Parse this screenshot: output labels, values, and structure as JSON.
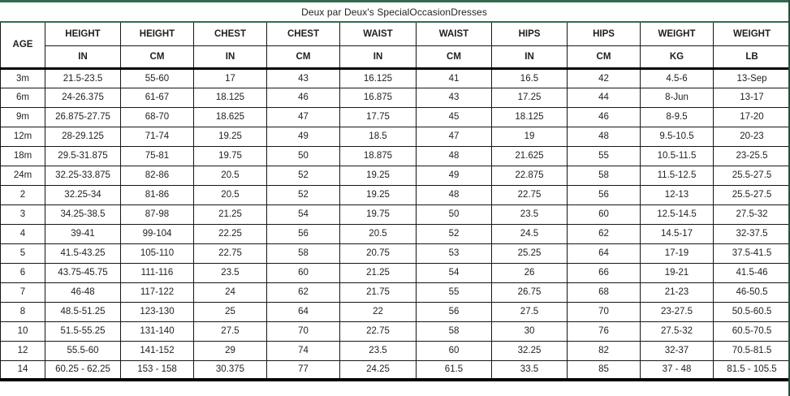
{
  "colors": {
    "accent_green": "#35694e",
    "frame_green_dark": "#26503c",
    "border_black": "#000000",
    "text": "#1f1f1f",
    "background": "#ffffff"
  },
  "chart_data": {
    "type": "table",
    "title": "Deux par Deux's SpecialOccasionDresses",
    "age_header": "AGE",
    "columns": [
      {
        "label": "HEIGHT",
        "unit": "IN"
      },
      {
        "label": "HEIGHT",
        "unit": "CM"
      },
      {
        "label": "CHEST",
        "unit": "IN"
      },
      {
        "label": "CHEST",
        "unit": "CM"
      },
      {
        "label": "WAIST",
        "unit": "IN"
      },
      {
        "label": "WAIST",
        "unit": "CM"
      },
      {
        "label": "HIPS",
        "unit": "IN"
      },
      {
        "label": "HIPS",
        "unit": "CM"
      },
      {
        "label": "WEIGHT",
        "unit": "KG"
      },
      {
        "label": "WEIGHT",
        "unit": "LB"
      }
    ],
    "rows": [
      {
        "age": "3m",
        "values": [
          "21.5-23.5",
          "55-60",
          "17",
          "43",
          "16.125",
          "41",
          "16.5",
          "42",
          "4.5-6",
          "13-Sep"
        ]
      },
      {
        "age": "6m",
        "values": [
          "24-26.375",
          "61-67",
          "18.125",
          "46",
          "16.875",
          "43",
          "17.25",
          "44",
          "8-Jun",
          "13-17"
        ]
      },
      {
        "age": "9m",
        "values": [
          "26.875-27.75",
          "68-70",
          "18.625",
          "47",
          "17.75",
          "45",
          "18.125",
          "46",
          "8-9.5",
          "17-20"
        ]
      },
      {
        "age": "12m",
        "values": [
          "28-29.125",
          "71-74",
          "19.25",
          "49",
          "18.5",
          "47",
          "19",
          "48",
          "9.5-10.5",
          "20-23"
        ]
      },
      {
        "age": "18m",
        "values": [
          "29.5-31.875",
          "75-81",
          "19.75",
          "50",
          "18.875",
          "48",
          "21.625",
          "55",
          "10.5-11.5",
          "23-25.5"
        ]
      },
      {
        "age": "24m",
        "values": [
          "32.25-33.875",
          "82-86",
          "20.5",
          "52",
          "19.25",
          "49",
          "22.875",
          "58",
          "11.5-12.5",
          "25.5-27.5"
        ]
      },
      {
        "age": "2",
        "values": [
          "32.25-34",
          "81-86",
          "20.5",
          "52",
          "19.25",
          "48",
          "22.75",
          "56",
          "12-13",
          "25.5-27.5"
        ]
      },
      {
        "age": "3",
        "values": [
          "34.25-38.5",
          "87-98",
          "21.25",
          "54",
          "19.75",
          "50",
          "23.5",
          "60",
          "12.5-14.5",
          "27.5-32"
        ]
      },
      {
        "age": "4",
        "values": [
          "39-41",
          "99-104",
          "22.25",
          "56",
          "20.5",
          "52",
          "24.5",
          "62",
          "14.5-17",
          "32-37.5"
        ]
      },
      {
        "age": "5",
        "values": [
          "41.5-43.25",
          "105-110",
          "22.75",
          "58",
          "20.75",
          "53",
          "25.25",
          "64",
          "17-19",
          "37.5-41.5"
        ]
      },
      {
        "age": "6",
        "values": [
          "43.75-45.75",
          "111-116",
          "23.5",
          "60",
          "21.25",
          "54",
          "26",
          "66",
          "19-21",
          "41.5-46"
        ]
      },
      {
        "age": "7",
        "values": [
          "46-48",
          "117-122",
          "24",
          "62",
          "21.75",
          "55",
          "26.75",
          "68",
          "21-23",
          "46-50.5"
        ]
      },
      {
        "age": "8",
        "values": [
          "48.5-51.25",
          "123-130",
          "25",
          "64",
          "22",
          "56",
          "27.5",
          "70",
          "23-27.5",
          "50.5-60.5"
        ]
      },
      {
        "age": "10",
        "values": [
          "51.5-55.25",
          "131-140",
          "27.5",
          "70",
          "22.75",
          "58",
          "30",
          "76",
          "27.5-32",
          "60.5-70.5"
        ]
      },
      {
        "age": "12",
        "values": [
          "55.5-60",
          "141-152",
          "29",
          "74",
          "23.5",
          "60",
          "32.25",
          "82",
          "32-37",
          "70.5-81.5"
        ]
      },
      {
        "age": "14",
        "values": [
          "60.25 - 62.25",
          "153 - 158",
          "30.375",
          "77",
          "24.25",
          "61.5",
          "33.5",
          "85",
          "37 - 48",
          "81.5 - 105.5"
        ]
      }
    ]
  }
}
